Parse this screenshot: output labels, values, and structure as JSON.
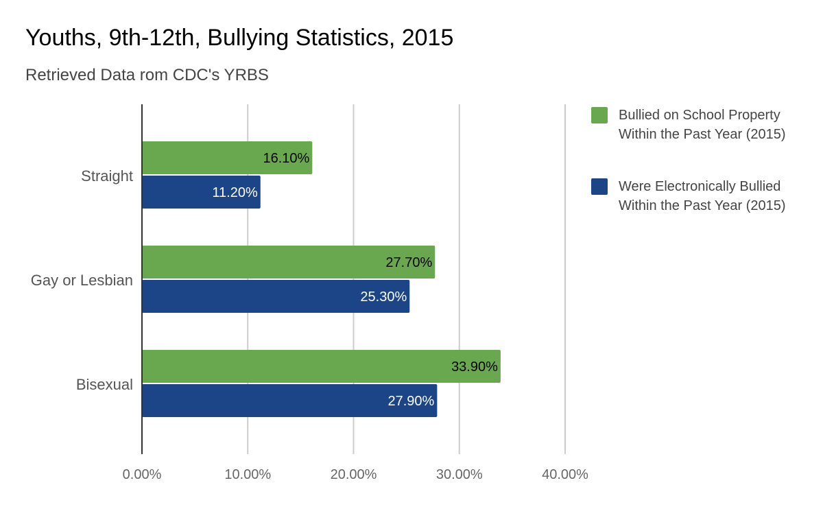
{
  "chart_data": {
    "type": "bar",
    "orientation": "horizontal",
    "title": "Youths, 9th-12th, Bullying Statistics, 2015",
    "subtitle": "Retrieved Data rom CDC's YRBS",
    "categories": [
      "Straight",
      "Gay or Lesbian",
      "Bisexual"
    ],
    "series": [
      {
        "name": "Bullied on School Property Within the Past Year (2015)",
        "color": "#6aa84f",
        "label_color": "#000000",
        "values": [
          16.1,
          27.7,
          33.9
        ],
        "labels": [
          "16.10%",
          "27.70%",
          "33.90%"
        ]
      },
      {
        "name": "Were Electronically Bullied Within the Past Year (2015)",
        "color": "#1c4587",
        "label_color": "#ffffff",
        "values": [
          11.2,
          25.3,
          27.9
        ],
        "labels": [
          "11.20%",
          "25.30%",
          "27.90%"
        ]
      }
    ],
    "xlim": [
      0,
      40
    ],
    "xticks": [
      0,
      10,
      20,
      30,
      40
    ],
    "xtick_labels": [
      "0.00%",
      "10.00%",
      "20.00%",
      "30.00%",
      "40.00%"
    ],
    "xlabel": "",
    "ylabel": "",
    "grid": true,
    "legend_position": "right"
  }
}
